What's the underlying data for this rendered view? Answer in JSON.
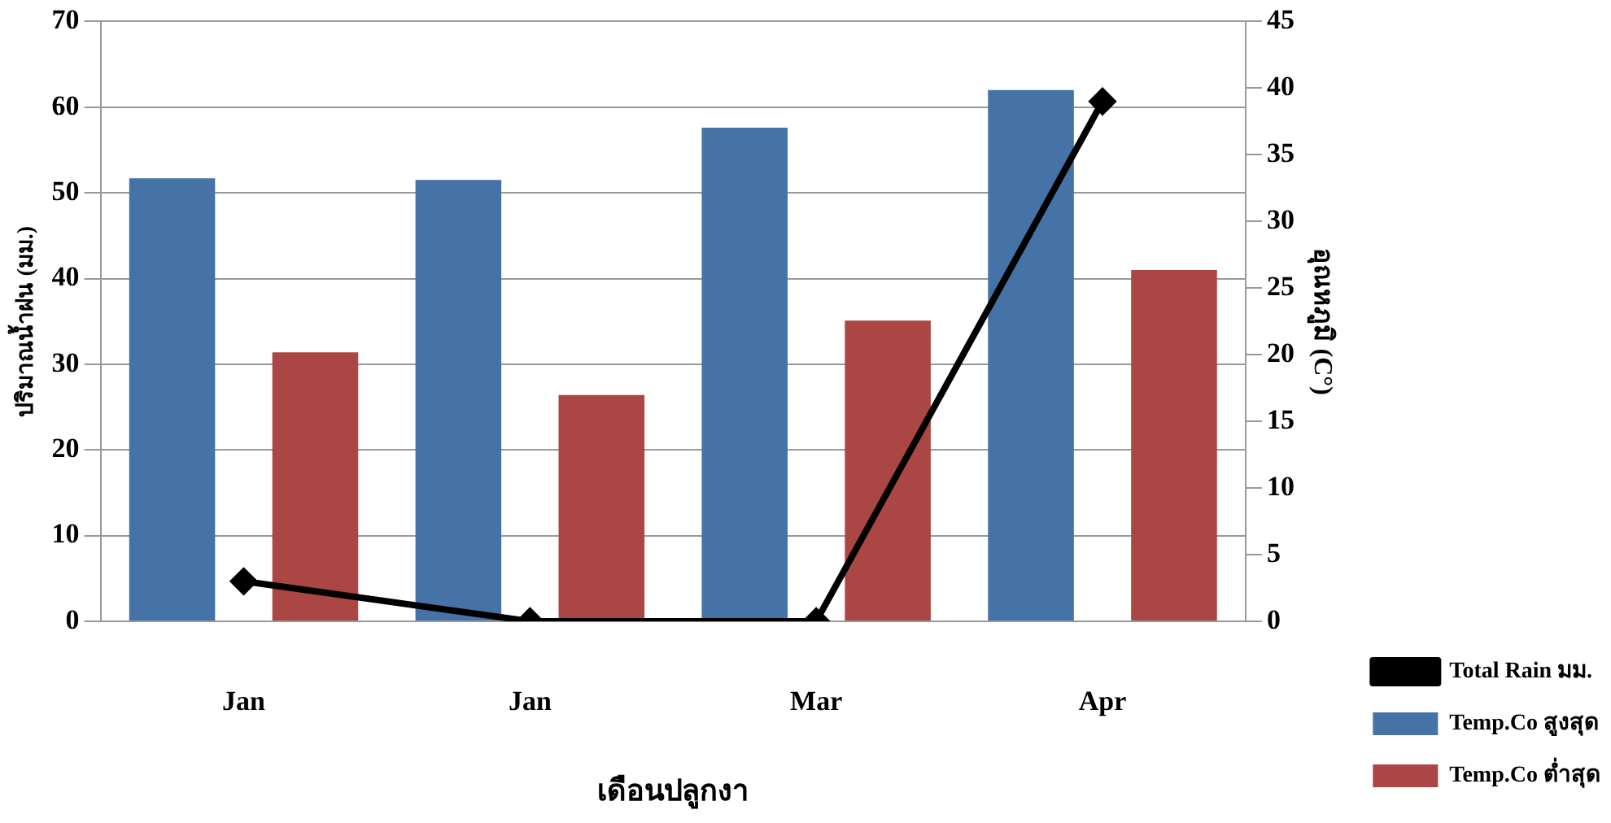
{
  "chart_data": {
    "type": "bar",
    "xlabel": "เดือนปลูกงา",
    "ylabel": "ปริมาณน้ำฝน (มม.)",
    "y2label": "อุณหภูมิ (C°)",
    "categories": [
      "Jan",
      "Jan",
      "Mar",
      "Apr"
    ],
    "series": [
      {
        "name": "Temp.Co สูงสุด",
        "color": "#4572a7",
        "values": [
          51.7,
          51.5,
          57.6,
          62
        ]
      },
      {
        "name": "Temp.Co ต่ำสุด",
        "color": "#aa4643",
        "values": [
          31.4,
          26.4,
          35.1,
          41
        ]
      },
      {
        "name": "Total Rain มม.",
        "type": "line",
        "axis": "y2",
        "color": "#000000",
        "marker": "diamond",
        "line_style": "solid",
        "values": [
          3,
          0,
          0,
          39
        ]
      }
    ],
    "ylim": [
      0,
      70
    ],
    "yticks": [
      0,
      10,
      20,
      30,
      40,
      50,
      60,
      70
    ],
    "y2lim": [
      0,
      45
    ],
    "y2ticks": [
      0,
      5,
      10,
      15,
      20,
      25,
      30,
      35,
      40,
      45
    ],
    "grid": "y",
    "legend": "right"
  }
}
